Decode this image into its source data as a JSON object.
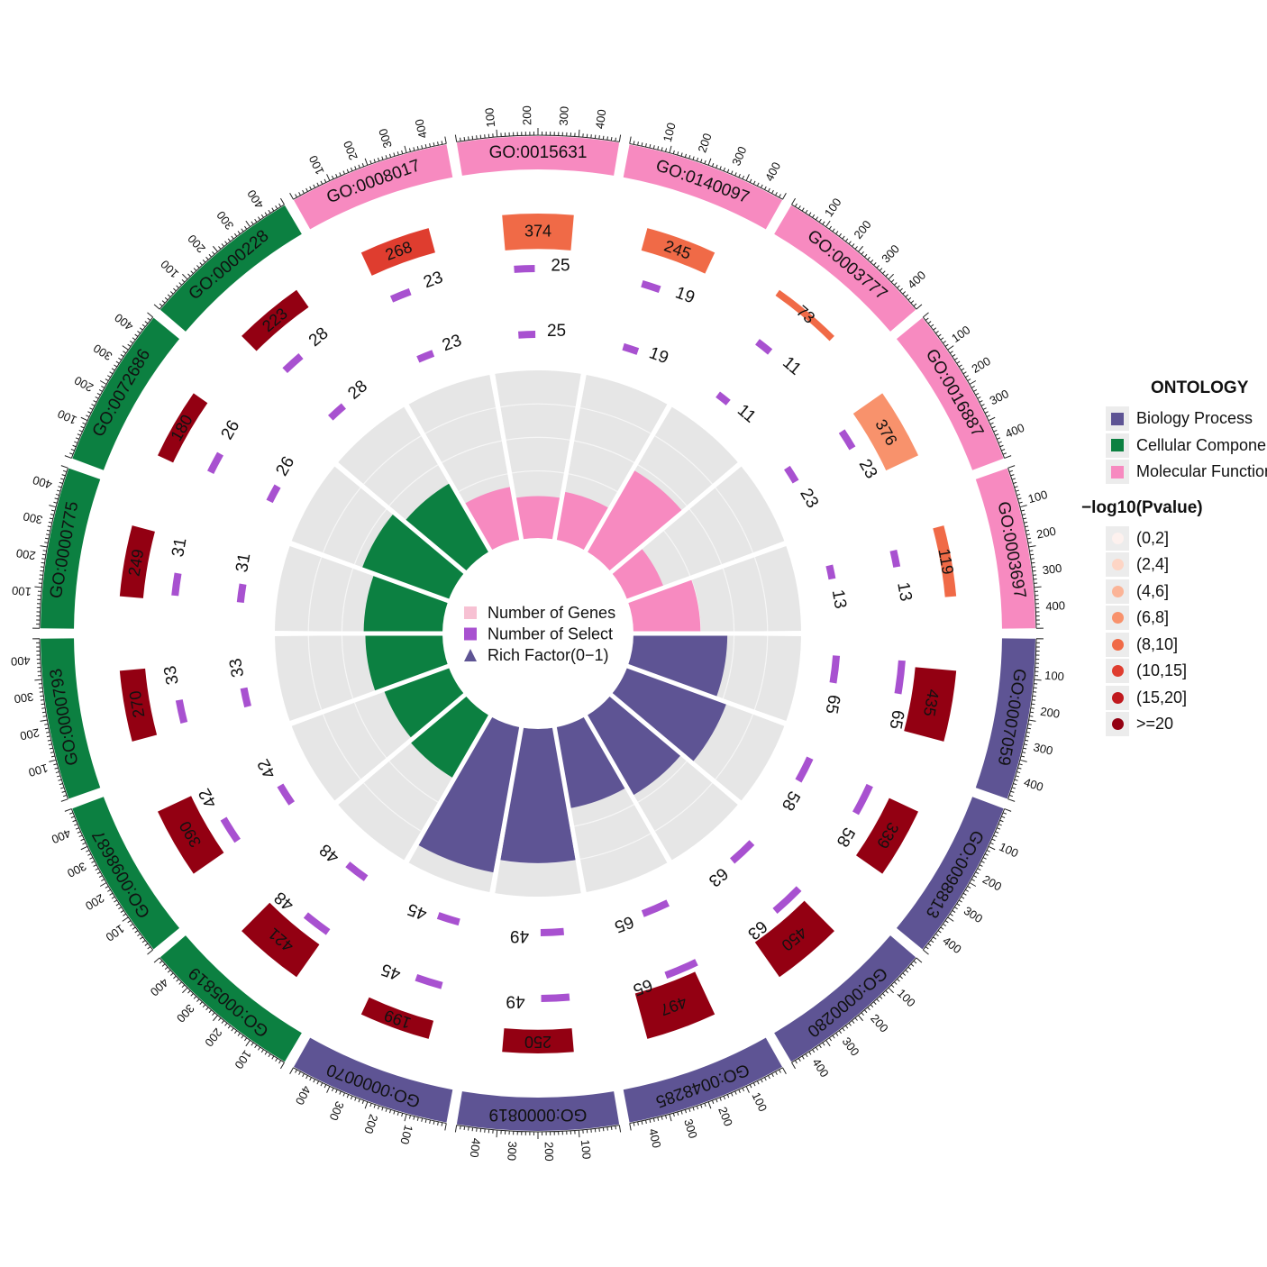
{
  "legend": {
    "ontology_title": "ONTOLOGY",
    "ontology_items": [
      {
        "label": "Biology Process",
        "color": "#5e5494"
      },
      {
        "label": "Cellular Component",
        "color": "#0c8041"
      },
      {
        "label": "Molecular Function",
        "color": "#f78ac0"
      }
    ],
    "pvalue_title": "−log10(Pvalue)",
    "pvalue_items": [
      {
        "label": "(0,2]",
        "color": "#fdf1ee"
      },
      {
        "label": "(2,4]",
        "color": "#fdd5c5"
      },
      {
        "label": "(4,6]",
        "color": "#fbb497"
      },
      {
        "label": "(6,8]",
        "color": "#f8926c"
      },
      {
        "label": "(8,10]",
        "color": "#f06a47"
      },
      {
        "label": "(10,15]",
        "color": "#df3d2f"
      },
      {
        "label": "(15,20]",
        "color": "#c0191e"
      },
      {
        "label": ">=20",
        "color": "#930012"
      }
    ]
  },
  "center_legend": [
    {
      "label": "Number of Genes",
      "shape": "square",
      "color": "#f7c1d3"
    },
    {
      "label": "Number of Select",
      "shape": "square",
      "color": "#a851d0"
    },
    {
      "label": "Rich Factor(0−1)",
      "shape": "triangle",
      "color": "#5e5494"
    }
  ],
  "chart_data": {
    "type": "circos",
    "outer_axis_ticks": [
      "100",
      "200",
      "300",
      "400"
    ],
    "terms": [
      {
        "id": "GO:0007059",
        "ontology": "Biology Process",
        "genes": 435,
        "select": 65,
        "rich": 0.56,
        "pvalue_class": ">=20"
      },
      {
        "id": "GO:0098813",
        "ontology": "Biology Process",
        "genes": 339,
        "select": 58,
        "rich": 0.63,
        "pvalue_class": ">=20"
      },
      {
        "id": "GO:0000280",
        "ontology": "Biology Process",
        "genes": 450,
        "select": 63,
        "rich": 0.55,
        "pvalue_class": ">=20"
      },
      {
        "id": "GO:0048285",
        "ontology": "Biology Process",
        "genes": 497,
        "select": 65,
        "rich": 0.49,
        "pvalue_class": ">=20"
      },
      {
        "id": "GO:0000819",
        "ontology": "Biology Process",
        "genes": 250,
        "select": 49,
        "rich": 0.8,
        "pvalue_class": ">=20"
      },
      {
        "id": "GO:0000070",
        "ontology": "Biology Process",
        "genes": 199,
        "select": 45,
        "rich": 0.88,
        "pvalue_class": ">=20"
      },
      {
        "id": "GO:0005819",
        "ontology": "Cellular Component",
        "genes": 421,
        "select": 48,
        "rich": 0.43,
        "pvalue_class": ">=20"
      },
      {
        "id": "GO:0098687",
        "ontology": "Cellular Component",
        "genes": 390,
        "select": 42,
        "rich": 0.41,
        "pvalue_class": ">=20"
      },
      {
        "id": "GO:0000793",
        "ontology": "Cellular Component",
        "genes": 270,
        "select": 33,
        "rich": 0.46,
        "pvalue_class": ">=20"
      },
      {
        "id": "GO:0000775",
        "ontology": "Cellular Component",
        "genes": 249,
        "select": 31,
        "rich": 0.47,
        "pvalue_class": ">=20"
      },
      {
        "id": "GO:0072686",
        "ontology": "Cellular Component",
        "genes": 180,
        "select": 26,
        "rich": 0.55,
        "pvalue_class": ">=20"
      },
      {
        "id": "GO:0000228",
        "ontology": "Cellular Component",
        "genes": 223,
        "select": 28,
        "rich": 0.47,
        "pvalue_class": ">=20"
      },
      {
        "id": "GO:0008017",
        "ontology": "Molecular Function",
        "genes": 268,
        "select": 23,
        "rich": 0.32,
        "pvalue_class": "(10,15]"
      },
      {
        "id": "GO:0015631",
        "ontology": "Molecular Function",
        "genes": 374,
        "select": 25,
        "rich": 0.25,
        "pvalue_class": "(8,10]"
      },
      {
        "id": "GO:0140097",
        "ontology": "Molecular Function",
        "genes": 245,
        "select": 19,
        "rich": 0.29,
        "pvalue_class": "(8,10]"
      },
      {
        "id": "GO:0003777",
        "ontology": "Molecular Function",
        "genes": 73,
        "select": 11,
        "rich": 0.56,
        "pvalue_class": "(8,10]"
      },
      {
        "id": "GO:0016887",
        "ontology": "Molecular Function",
        "genes": 376,
        "select": 23,
        "rich": 0.23,
        "pvalue_class": "(6,8]"
      },
      {
        "id": "GO:0003697",
        "ontology": "Molecular Function",
        "genes": 119,
        "select": 13,
        "rich": 0.4,
        "pvalue_class": "(8,10]"
      }
    ]
  }
}
